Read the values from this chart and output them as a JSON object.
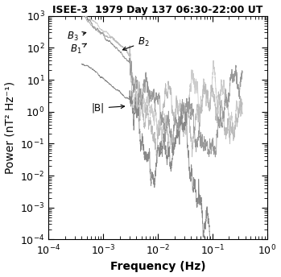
{
  "title": "ISEE-3  1979 Day 137 06:30-22:00 UT",
  "xlabel": "Frequency (Hz)",
  "ylabel": "Power (nT² Hz⁻¹)",
  "xlim": [
    0.0001,
    1.0
  ],
  "ylim": [
    0.0001,
    1000.0
  ],
  "line_colors": {
    "B1": "#999999",
    "B2": "#bbbbbb",
    "B3": "#cccccc",
    "Bmag": "#888888"
  },
  "seed": 12345,
  "background_color": "#ffffff",
  "title_fontsize": 9,
  "label_fontsize": 10,
  "tick_fontsize": 9
}
